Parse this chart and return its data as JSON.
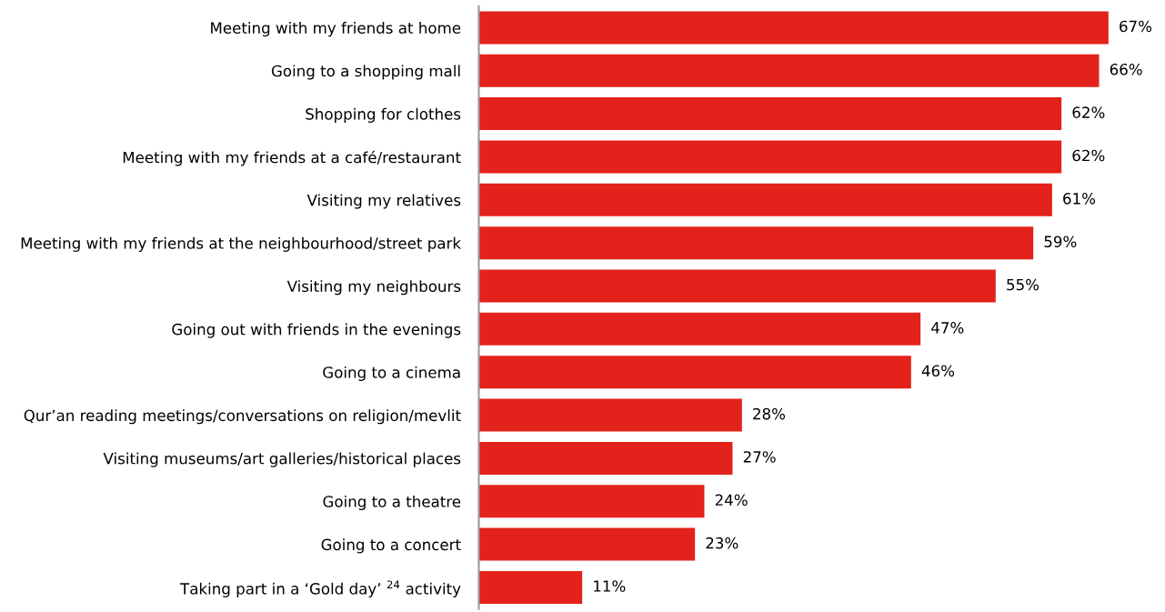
{
  "chart_data": {
    "type": "bar",
    "orientation": "horizontal",
    "categories": [
      "Meeting with my friends at home",
      "Going to a shopping mall",
      "Shopping for clothes",
      "Meeting with my friends at a café/restaurant",
      "Visiting my relatives",
      "Meeting with my friends at the neighbourhood/street park",
      "Visiting my neighbours",
      "Going out with friends in the evenings",
      "Going to a cinema",
      "Qur’an reading meetings/conversations on religion/mevlit",
      "Visiting museums/art galleries/historical places",
      "Going to a theatre",
      "Going to a concert",
      "Taking part in a ‘Gold day’ $^{24}$ activity"
    ],
    "values": [
      67,
      66,
      62,
      62,
      61,
      59,
      55,
      47,
      46,
      28,
      27,
      24,
      23,
      11
    ],
    "value_labels": [
      "67%",
      "66%",
      "62%",
      "62%",
      "61%",
      "59%",
      "55%",
      "47%",
      "46%",
      "28%",
      "27%",
      "24%",
      "23%",
      "11%"
    ],
    "color": "#e3221b",
    "tick_labels": "y",
    "grid": false,
    "legend": false
  }
}
